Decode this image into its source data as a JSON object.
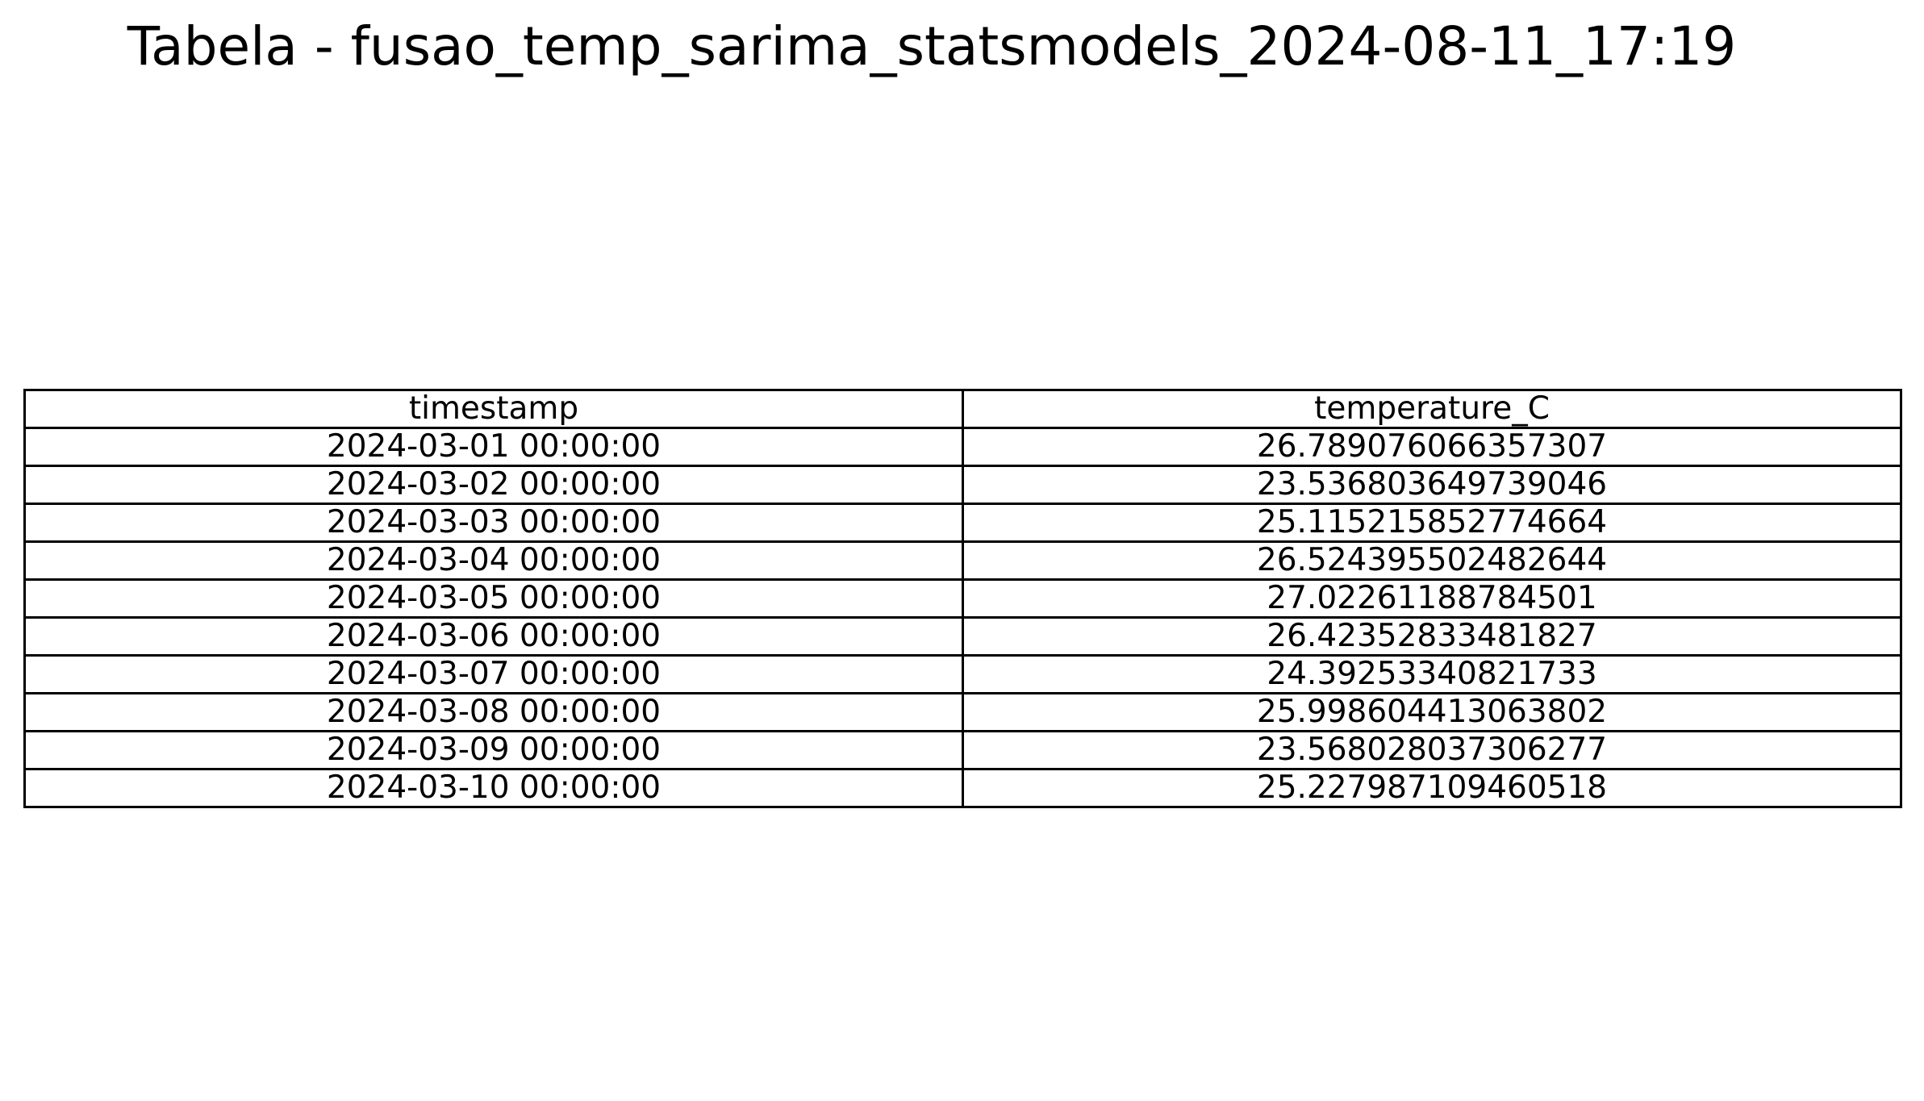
{
  "title": "Tabela - fusao_temp_sarima_statsmodels_2024-08-11_17:19",
  "chart_data": {
    "type": "table",
    "title": "Tabela - fusao_temp_sarima_statsmodels_2024-08-11_17:19",
    "columns": [
      "timestamp",
      "temperature_C"
    ],
    "rows": [
      [
        "2024-03-01 00:00:00",
        "26.789076066357307"
      ],
      [
        "2024-03-02 00:00:00",
        "23.536803649739046"
      ],
      [
        "2024-03-03 00:00:00",
        "25.115215852774664"
      ],
      [
        "2024-03-04 00:00:00",
        "26.524395502482644"
      ],
      [
        "2024-03-05 00:00:00",
        "27.02261188784501"
      ],
      [
        "2024-03-06 00:00:00",
        "26.42352833481827"
      ],
      [
        "2024-03-07 00:00:00",
        "24.39253340821733"
      ],
      [
        "2024-03-08 00:00:00",
        "25.998604413063802"
      ],
      [
        "2024-03-09 00:00:00",
        "23.568028037306277"
      ],
      [
        "2024-03-10 00:00:00",
        "25.227987109460518"
      ]
    ]
  }
}
